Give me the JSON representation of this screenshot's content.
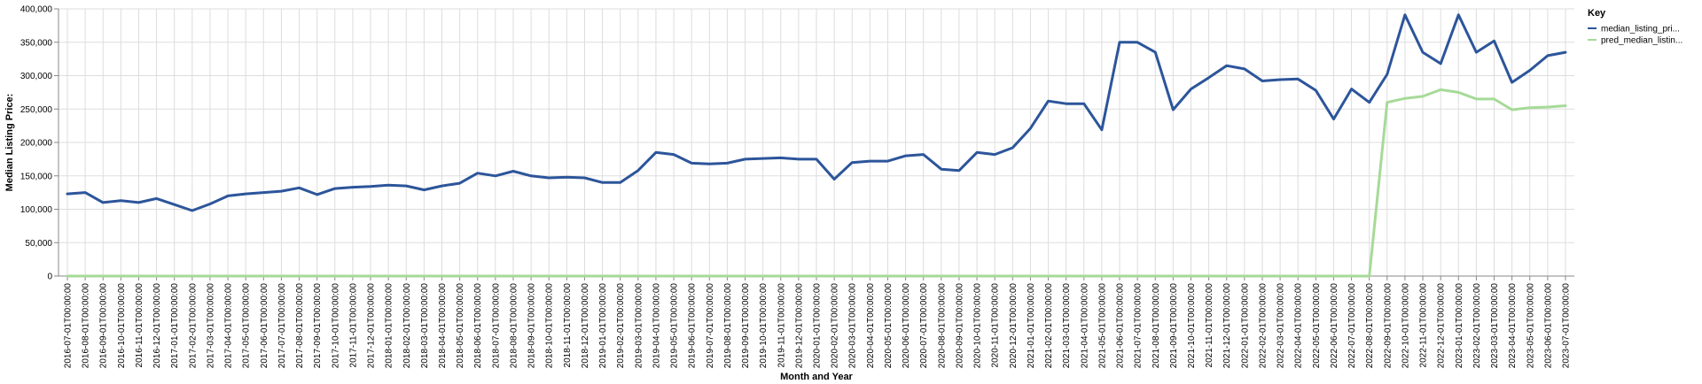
{
  "chart_data": {
    "type": "line",
    "title": "",
    "xlabel": "Month and Year",
    "ylabel": "Median Listing Price:",
    "ylim": [
      0,
      400000
    ],
    "y_ticks": [
      "0",
      "50,000",
      "100,000",
      "150,000",
      "200,000",
      "250,000",
      "300,000",
      "350,000",
      "400,000"
    ],
    "grid": true,
    "legend": {
      "title": "Key",
      "placement": "top-right"
    },
    "x": [
      "2016-07-01T00:00:00",
      "2016-08-01T00:00:00",
      "2016-09-01T00:00:00",
      "2016-10-01T00:00:00",
      "2016-11-01T00:00:00",
      "2016-12-01T00:00:00",
      "2017-01-01T00:00:00",
      "2017-02-01T00:00:00",
      "2017-03-01T00:00:00",
      "2017-04-01T00:00:00",
      "2017-05-01T00:00:00",
      "2017-06-01T00:00:00",
      "2017-07-01T00:00:00",
      "2017-08-01T00:00:00",
      "2017-09-01T00:00:00",
      "2017-10-01T00:00:00",
      "2017-11-01T00:00:00",
      "2017-12-01T00:00:00",
      "2018-01-01T00:00:00",
      "2018-02-01T00:00:00",
      "2018-03-01T00:00:00",
      "2018-04-01T00:00:00",
      "2018-05-01T00:00:00",
      "2018-06-01T00:00:00",
      "2018-07-01T00:00:00",
      "2018-08-01T00:00:00",
      "2018-09-01T00:00:00",
      "2018-10-01T00:00:00",
      "2018-11-01T00:00:00",
      "2018-12-01T00:00:00",
      "2019-01-01T00:00:00",
      "2019-02-01T00:00:00",
      "2019-03-01T00:00:00",
      "2019-04-01T00:00:00",
      "2019-05-01T00:00:00",
      "2019-06-01T00:00:00",
      "2019-07-01T00:00:00",
      "2019-08-01T00:00:00",
      "2019-09-01T00:00:00",
      "2019-10-01T00:00:00",
      "2019-11-01T00:00:00",
      "2019-12-01T00:00:00",
      "2020-01-01T00:00:00",
      "2020-02-01T00:00:00",
      "2020-03-01T00:00:00",
      "2020-04-01T00:00:00",
      "2020-05-01T00:00:00",
      "2020-06-01T00:00:00",
      "2020-07-01T00:00:00",
      "2020-08-01T00:00:00",
      "2020-09-01T00:00:00",
      "2020-10-01T00:00:00",
      "2020-11-01T00:00:00",
      "2020-12-01T00:00:00",
      "2021-01-01T00:00:00",
      "2021-02-01T00:00:00",
      "2021-03-01T00:00:00",
      "2021-04-01T00:00:00",
      "2021-05-01T00:00:00",
      "2021-06-01T00:00:00",
      "2021-07-01T00:00:00",
      "2021-08-01T00:00:00",
      "2021-09-01T00:00:00",
      "2021-10-01T00:00:00",
      "2021-11-01T00:00:00",
      "2021-12-01T00:00:00",
      "2022-01-01T00:00:00",
      "2022-02-01T00:00:00",
      "2022-03-01T00:00:00",
      "2022-04-01T00:00:00",
      "2022-05-01T00:00:00",
      "2022-06-01T00:00:00",
      "2022-07-01T00:00:00",
      "2022-08-01T00:00:00",
      "2022-09-01T00:00:00",
      "2022-10-01T00:00:00",
      "2022-11-01T00:00:00",
      "2022-12-01T00:00:00",
      "2023-01-01T00:00:00",
      "2023-02-01T00:00:00",
      "2023-03-01T00:00:00",
      "2023-04-01T00:00:00",
      "2023-05-01T00:00:00",
      "2023-06-01T00:00:00",
      "2023-07-01T00:00:00"
    ],
    "series": [
      {
        "name": "median_listing_pri...",
        "color": "#2c559a",
        "values": [
          123000,
          125000,
          110000,
          113000,
          110000,
          116000,
          107000,
          98000,
          108000,
          120000,
          123000,
          125000,
          127000,
          132000,
          122000,
          131000,
          133000,
          134000,
          136000,
          135000,
          129000,
          135000,
          139000,
          154000,
          150000,
          157000,
          150000,
          147000,
          148000,
          147000,
          140000,
          140000,
          158000,
          185000,
          182000,
          169000,
          168000,
          169000,
          175000,
          176000,
          177000,
          175000,
          175000,
          145000,
          170000,
          172000,
          172000,
          180000,
          182000,
          160000,
          158000,
          185000,
          182000,
          192000,
          221000,
          262000,
          258000,
          258000,
          219000,
          350000,
          350000,
          335000,
          249000,
          280000,
          297000,
          315000,
          310000,
          292000,
          294000,
          295000,
          278000,
          235000,
          280000,
          260000,
          302000,
          391000,
          335000,
          318000,
          391000,
          335000,
          352000,
          290000,
          308000,
          330000,
          335000
        ]
      },
      {
        "name": "pred_median_listin...",
        "color": "#a6da98",
        "values": [
          0,
          0,
          0,
          0,
          0,
          0,
          0,
          0,
          0,
          0,
          0,
          0,
          0,
          0,
          0,
          0,
          0,
          0,
          0,
          0,
          0,
          0,
          0,
          0,
          0,
          0,
          0,
          0,
          0,
          0,
          0,
          0,
          0,
          0,
          0,
          0,
          0,
          0,
          0,
          0,
          0,
          0,
          0,
          0,
          0,
          0,
          0,
          0,
          0,
          0,
          0,
          0,
          0,
          0,
          0,
          0,
          0,
          0,
          0,
          0,
          0,
          0,
          0,
          0,
          0,
          0,
          0,
          0,
          0,
          0,
          0,
          0,
          0,
          0,
          260000,
          266000,
          269000,
          279000,
          275000,
          265000,
          265000,
          249000,
          252000,
          253000,
          255000
        ]
      }
    ]
  }
}
